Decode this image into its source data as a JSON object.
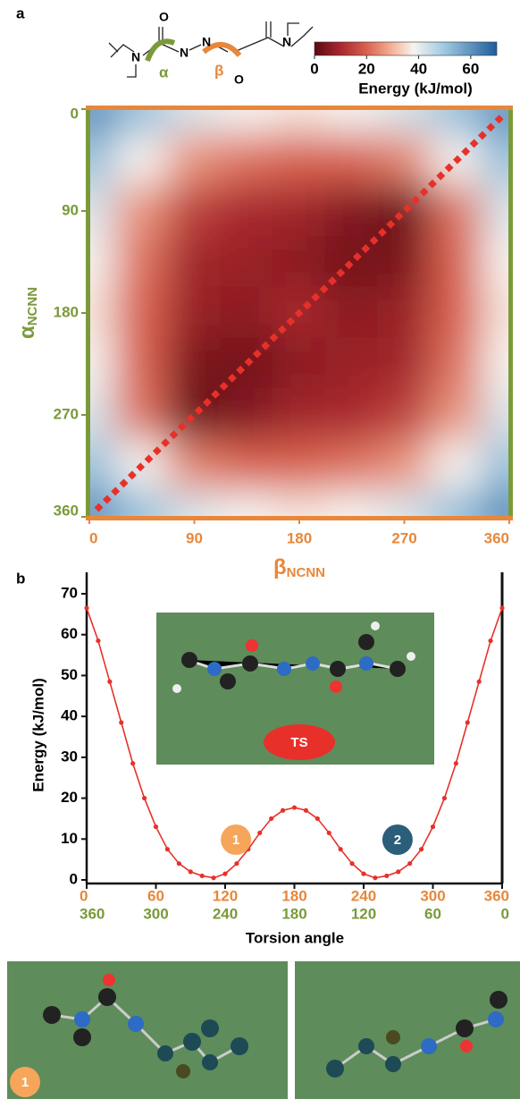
{
  "panel_labels": [
    "a",
    "b"
  ],
  "chart_data": [
    {
      "type": "heatmap",
      "scheme_labels": [
        "O",
        "N",
        "N",
        "N",
        "O",
        "N"
      ],
      "scheme_alpha": "α",
      "scheme_beta": "β",
      "x_label": "β",
      "x_label_sub": "NCNN",
      "y_label": "α",
      "y_label_sub": "NCNN",
      "x_color": "#e8873a",
      "y_color": "#7a9a3a",
      "line_color": "#e8302a",
      "x": [
        0,
        45,
        90,
        135,
        180,
        225,
        270,
        315,
        360
      ],
      "y": [
        0,
        45,
        90,
        135,
        180,
        225,
        270,
        315,
        360
      ],
      "z": [
        [
          62,
          52,
          42,
          38,
          36,
          38,
          42,
          52,
          62
        ],
        [
          52,
          38,
          26,
          22,
          20,
          20,
          24,
          38,
          52
        ],
        [
          42,
          26,
          14,
          10,
          9,
          5,
          2,
          22,
          42
        ],
        [
          38,
          22,
          9,
          8,
          6,
          3,
          4,
          20,
          38
        ],
        [
          36,
          20,
          8,
          6,
          10,
          6,
          8,
          20,
          36
        ],
        [
          38,
          20,
          4,
          3,
          6,
          8,
          9,
          22,
          38
        ],
        [
          42,
          22,
          2,
          5,
          9,
          10,
          14,
          26,
          42
        ],
        [
          52,
          38,
          24,
          20,
          20,
          22,
          26,
          38,
          52
        ],
        [
          62,
          52,
          42,
          38,
          36,
          38,
          42,
          52,
          62
        ]
      ],
      "xlim": [
        0,
        360
      ],
      "ylim": [
        0,
        360
      ],
      "xticks": [
        0,
        90,
        180,
        270,
        360
      ],
      "yticks": [
        0,
        90,
        180,
        270,
        360
      ],
      "clim": [
        0,
        70
      ],
      "cticks": [
        0,
        20,
        40,
        60
      ],
      "colorbar_label": "Energy (kJ/mol)",
      "colorscale": [
        [
          0,
          "#5c0a12"
        ],
        [
          10,
          "#a8282e"
        ],
        [
          20,
          "#d9624f"
        ],
        [
          30,
          "#f4b49a"
        ],
        [
          38,
          "#f7f3f0"
        ],
        [
          50,
          "#9ec8e0"
        ],
        [
          70,
          "#1f5d9c"
        ]
      ]
    },
    {
      "type": "line",
      "y_label": "Energy (kJ/mol)",
      "x_label": "Torsion angle",
      "x": [
        0,
        10,
        20,
        30,
        40,
        50,
        60,
        70,
        80,
        90,
        100,
        110,
        120,
        130,
        140,
        150,
        160,
        170,
        180,
        190,
        200,
        210,
        220,
        230,
        240,
        250,
        260,
        270,
        280,
        290,
        300,
        310,
        320,
        330,
        340,
        350,
        360
      ],
      "series": [
        {
          "color": "#e8302a",
          "values": [
            66.5,
            58.5,
            48.5,
            38.5,
            28.5,
            20,
            13,
            7.5,
            4,
            2,
            1,
            0.5,
            1.5,
            4,
            7.5,
            11.5,
            15,
            17,
            17.7,
            17,
            15,
            11.5,
            7.5,
            4,
            1.5,
            0.5,
            1,
            2,
            4,
            7.5,
            13,
            20,
            28.5,
            38.5,
            48.5,
            58.5,
            66.5
          ]
        }
      ],
      "xlim": [
        0,
        360
      ],
      "ylim": [
        0,
        70
      ],
      "xticks": [
        0,
        60,
        120,
        180,
        240,
        300,
        360
      ],
      "yticks": [
        0,
        10,
        20,
        30,
        40,
        50,
        60,
        70
      ],
      "x_secondary_tick_labels": [
        "360",
        "300",
        "240",
        "180",
        "120",
        "60",
        "0"
      ],
      "x_color": "#e8873a",
      "x_secondary_color": "#7a9a3a",
      "annotations": [
        {
          "text": "1",
          "x": 110,
          "y": 7,
          "color": "#f5a65b"
        },
        {
          "text": "2",
          "x": 250,
          "y": 7,
          "color": "#2b5e78"
        }
      ],
      "inset_label": "TS"
    }
  ],
  "structures": [
    "1"
  ]
}
